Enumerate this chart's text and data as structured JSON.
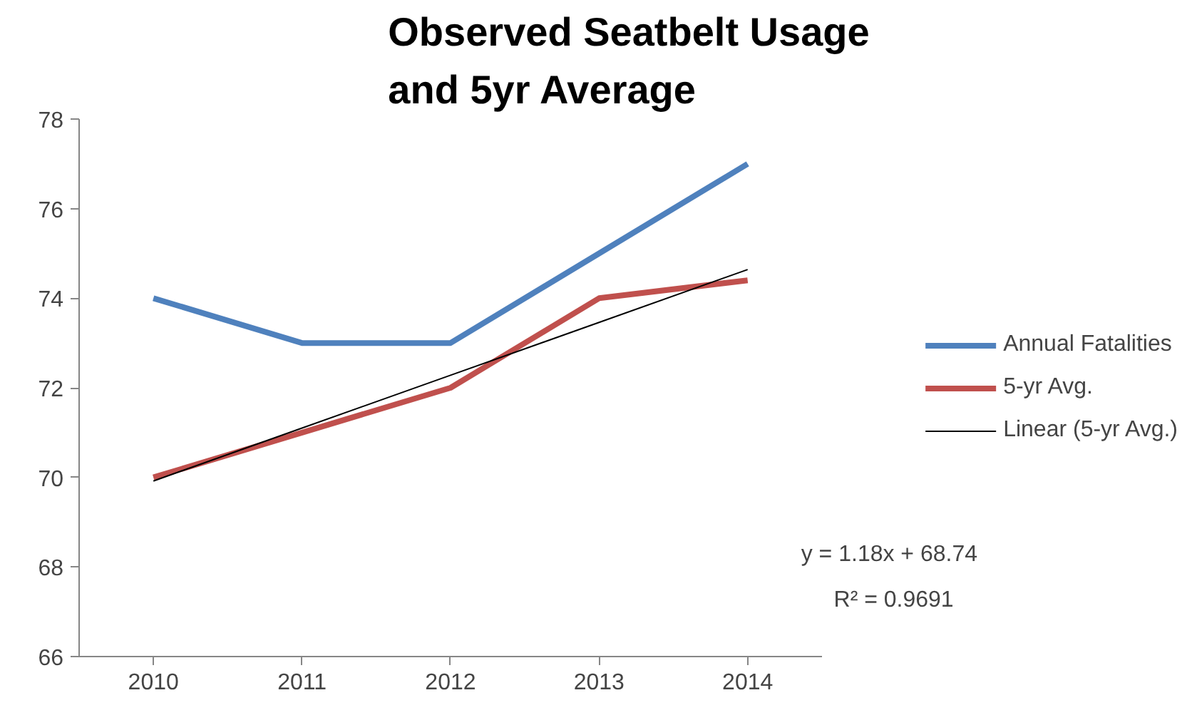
{
  "chart_data": {
    "type": "line",
    "title": "Observed Seatbelt Usage and 5yr Average",
    "categories": [
      "2010",
      "2011",
      "2012",
      "2013",
      "2014"
    ],
    "series": [
      {
        "name": "Annual Fatalities",
        "color": "#4f81bd",
        "values": [
          74,
          73,
          73,
          75,
          77
        ]
      },
      {
        "name": "5-yr Avg.",
        "color": "#c0504d",
        "values": [
          70,
          71,
          72,
          74,
          74.4
        ]
      },
      {
        "name": "Linear (5-yr Avg.)",
        "color": "#000000",
        "type": "line",
        "values": [
          69.92,
          71.1,
          72.28,
          73.46,
          74.64
        ]
      }
    ],
    "ylim": [
      66,
      78
    ],
    "yticks": [
      66,
      68,
      70,
      72,
      74,
      76,
      78
    ],
    "grid": false,
    "legend": "right",
    "marker": "none",
    "annotations": [
      "y = 1.18x + 68.74",
      "R² = 0.9691"
    ]
  }
}
